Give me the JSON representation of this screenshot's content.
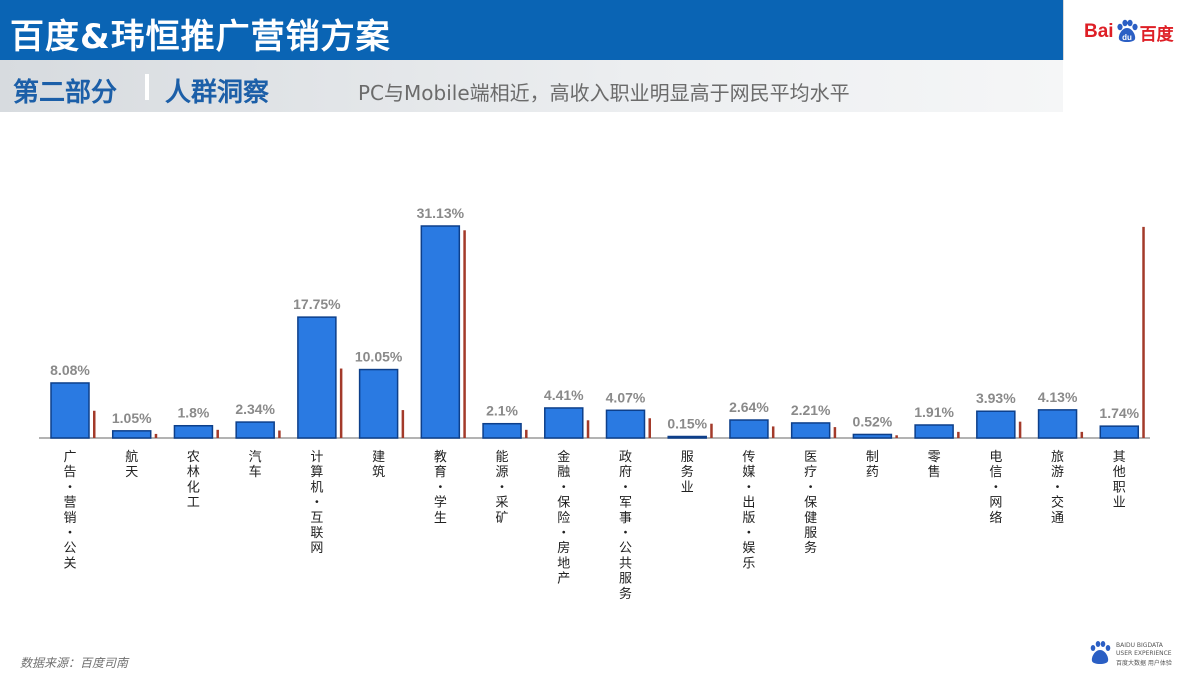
{
  "header": {
    "title": "百度&玮恒推广营销方案",
    "logo_text_latin": "Bai",
    "logo_text_paw": "du",
    "logo_text_cn": "百度"
  },
  "subheader": {
    "section": "第二部分",
    "section_topic": "人群洞察",
    "subtitle": "PC与Mobile端相近，高收入职业明显高于网民平均水平"
  },
  "footer": {
    "source": "数据来源：百度司南",
    "brand_line1": "BAIDU BIGDATA",
    "brand_line2": "USER EXPERIENCE",
    "brand_line3": "百度大数据 用户体验"
  },
  "colors": {
    "bar_fill": "#2a7ae2",
    "bar_stroke": "#0d3f8a",
    "secondary_bar": "#a33a2a",
    "label_gray": "#8a8a8a",
    "header_blue": "#0a64b4"
  },
  "chart_data": {
    "type": "bar",
    "title": "",
    "xlabel": "",
    "ylabel": "",
    "ylim": [
      0,
      33
    ],
    "grid": false,
    "legend": "none",
    "categories": [
      "广告・营销・公关",
      "航天",
      "农林化工",
      "汽车",
      "计算机・互联网",
      "建筑",
      "教育・学生",
      "能源・采矿",
      "金融・保险・房地产",
      "政府・军事・公共服务",
      "服务业",
      "传媒・出版・娱乐",
      "医疗・保健服务",
      "制药",
      "零售",
      "电信・网络",
      "旅游・交通",
      "其他职业"
    ],
    "series": [
      {
        "values": [
          8.08,
          1.05,
          1.8,
          2.34,
          17.75,
          10.05,
          31.13,
          2.1,
          4.41,
          4.07,
          0.15,
          2.64,
          2.21,
          0.52,
          1.91,
          3.93,
          4.13,
          1.74
        ],
        "labels": [
          "8.08%",
          "1.05%",
          "1.8%",
          "2.34%",
          "17.75%",
          "10.05%",
          "31.13%",
          "2.1%",
          "4.41%",
          "4.07%",
          "0.15%",
          "2.64%",
          "2.21%",
          "0.52%",
          "1.91%",
          "3.93%",
          "4.13%",
          "1.74%"
        ]
      },
      {
        "values": [
          4.0,
          0.6,
          1.2,
          1.1,
          10.2,
          4.1,
          30.5,
          1.2,
          2.6,
          2.9,
          2.1,
          1.7,
          1.6,
          0.4,
          0.9,
          2.4,
          0.9,
          31.0
        ]
      }
    ]
  }
}
